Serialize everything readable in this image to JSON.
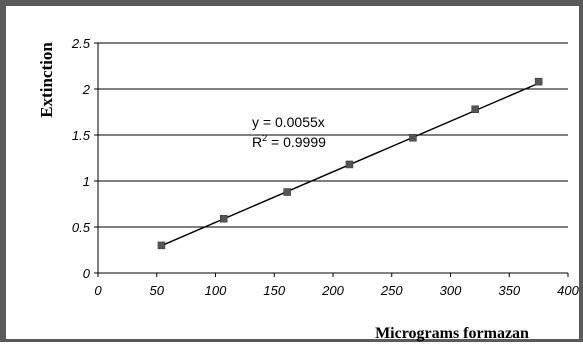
{
  "chart_data": {
    "type": "scatter",
    "title": "",
    "xlabel": "Micrograms formazan",
    "ylabel": "Extinction",
    "xlim": [
      0,
      400
    ],
    "ylim": [
      0,
      2.5
    ],
    "x_ticks": [
      "0",
      "50",
      "100",
      "150",
      "200",
      "250",
      "300",
      "350",
      "400"
    ],
    "y_ticks": [
      "0",
      "0.5",
      "1",
      "1.5",
      "2",
      "2.5"
    ],
    "grid": "horizontal",
    "legend": "none",
    "marker_color": "#555555",
    "series": [
      {
        "x": [
          54,
          107,
          161,
          214,
          268,
          321,
          375
        ],
        "y": [
          0.3,
          0.59,
          0.88,
          1.18,
          1.47,
          1.78,
          2.08
        ]
      }
    ],
    "trendline": {
      "slope": 0.0055,
      "x_range": [
        54,
        375
      ],
      "equation": "y = 0.0055x",
      "r2_prefix": "R",
      "r2_superscript": "2",
      "r2_suffix": " = 0.9999"
    }
  }
}
